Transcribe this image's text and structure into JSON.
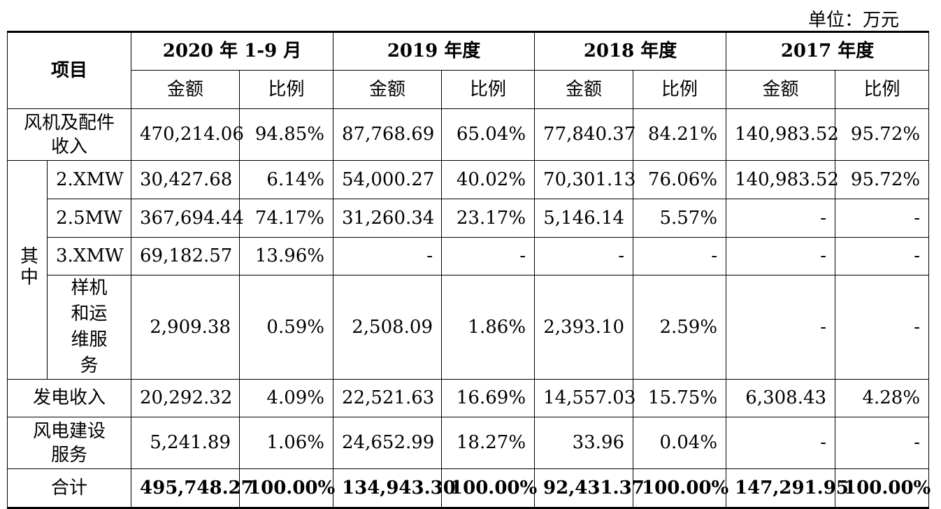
{
  "unit_label": "单位：万元",
  "header": {
    "item_label": "项目",
    "periods": [
      "2020 年 1-9 月",
      "2019 年度",
      "2018 年度",
      "2017 年度"
    ],
    "amount_label": "金额",
    "ratio_label": "比例"
  },
  "rows": {
    "turbine": {
      "label": "风机及配件收入",
      "values": [
        "470,214.06",
        "94.85%",
        "87,768.69",
        "65.04%",
        "77,840.37",
        "84.21%",
        "140,983.52",
        "95.72%"
      ]
    },
    "group_label": "其中",
    "sub": [
      {
        "label": "2.XMW",
        "values": [
          "30,427.68",
          "6.14%",
          "54,000.27",
          "40.02%",
          "70,301.13",
          "76.06%",
          "140,983.52",
          "95.72%"
        ]
      },
      {
        "label": "2.5MW",
        "values": [
          "367,694.44",
          "74.17%",
          "31,260.34",
          "23.17%",
          "5,146.14",
          "5.57%",
          "-",
          "-"
        ]
      },
      {
        "label": "3.XMW",
        "values": [
          "69,182.57",
          "13.96%",
          "-",
          "-",
          "-",
          "-",
          "-",
          "-"
        ]
      },
      {
        "label": "样机和运维服务",
        "values": [
          "2,909.38",
          "0.59%",
          "2,508.09",
          "1.86%",
          "2,393.10",
          "2.59%",
          "-",
          "-"
        ]
      }
    ],
    "power": {
      "label": "发电收入",
      "values": [
        "20,292.32",
        "4.09%",
        "22,521.63",
        "16.69%",
        "14,557.03",
        "15.75%",
        "6,308.43",
        "4.28%"
      ]
    },
    "construction": {
      "label": "风电建设服务",
      "values": [
        "5,241.89",
        "1.06%",
        "24,652.99",
        "18.27%",
        "33.96",
        "0.04%",
        "-",
        "-"
      ]
    },
    "total": {
      "label": "合计",
      "values": [
        "495,748.27",
        "100.00%",
        "134,943.30",
        "100.00%",
        "92,431.37",
        "100.00%",
        "147,291.95",
        "100.00%"
      ]
    }
  }
}
